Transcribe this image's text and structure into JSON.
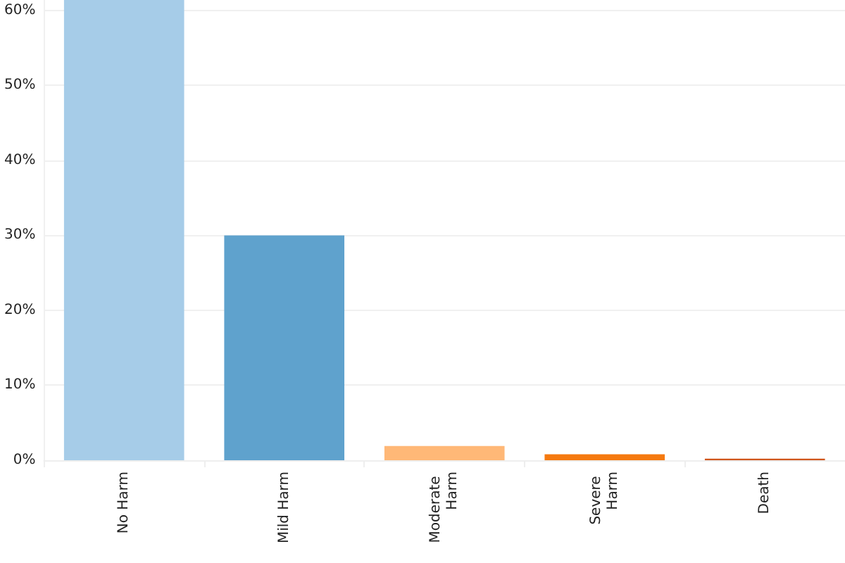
{
  "chart_data": {
    "type": "bar",
    "categories": [
      "No Harm",
      "Mild Harm",
      "Moderate Harm",
      "Severe Harm",
      "Death"
    ],
    "values": [
      61.4,
      30,
      1.9,
      0.8,
      0.2
    ],
    "colors": [
      "#a6cce8",
      "#5fa2cd",
      "#ffb877",
      "#f57a10",
      "#d0561c"
    ],
    "ylim": [
      0,
      61.4
    ],
    "yticks": [
      {
        "value": 0,
        "label": "0%"
      },
      {
        "value": 10,
        "label": "10%"
      },
      {
        "value": 20,
        "label": "20%"
      },
      {
        "value": 30,
        "label": "30%"
      },
      {
        "value": 40,
        "label": "40%"
      },
      {
        "value": 50,
        "label": "50%"
      },
      {
        "value": 60,
        "label": "60%"
      }
    ],
    "grid": "y"
  }
}
